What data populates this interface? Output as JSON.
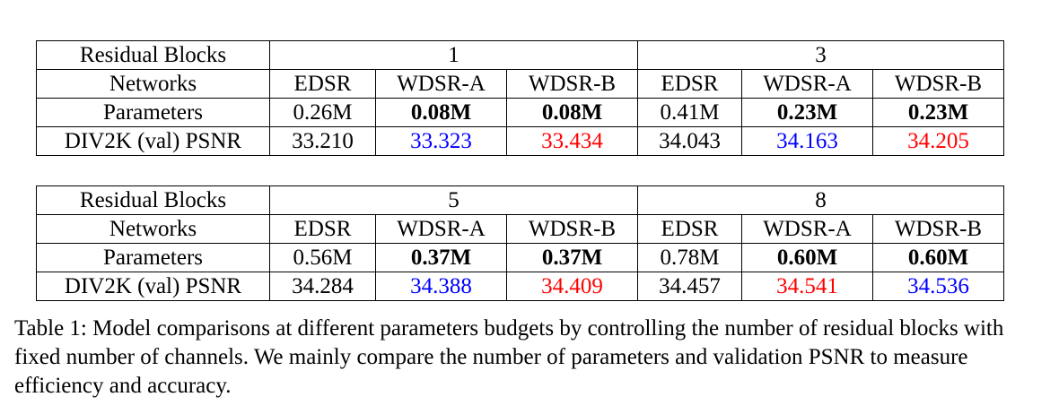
{
  "tables": [
    {
      "row_labels": [
        "Residual Blocks",
        "Networks",
        "Parameters",
        "DIV2K (val) PSNR"
      ],
      "groups": [
        {
          "blocks": "1",
          "networks": [
            "EDSR",
            "WDSR-A",
            "WDSR-B"
          ],
          "parameters": [
            "0.26M",
            "0.08M",
            "0.08M"
          ],
          "psnr": [
            "33.210",
            "33.323",
            "33.434"
          ]
        },
        {
          "blocks": "3",
          "networks": [
            "EDSR",
            "WDSR-A",
            "WDSR-B"
          ],
          "parameters": [
            "0.41M",
            "0.23M",
            "0.23M"
          ],
          "psnr": [
            "34.043",
            "34.163",
            "34.205"
          ]
        }
      ]
    },
    {
      "row_labels": [
        "Residual Blocks",
        "Networks",
        "Parameters",
        "DIV2K (val) PSNR"
      ],
      "groups": [
        {
          "blocks": "5",
          "networks": [
            "EDSR",
            "WDSR-A",
            "WDSR-B"
          ],
          "parameters": [
            "0.56M",
            "0.37M",
            "0.37M"
          ],
          "psnr": [
            "34.284",
            "34.388",
            "34.409"
          ]
        },
        {
          "blocks": "8",
          "networks": [
            "EDSR",
            "WDSR-A",
            "WDSR-B"
          ],
          "parameters": [
            "0.78M",
            "0.60M",
            "0.60M"
          ],
          "psnr": [
            "34.457",
            "34.541",
            "34.536"
          ]
        }
      ]
    }
  ],
  "highlight_colors": {
    "best": "#ff0000",
    "second": "#0000ff"
  },
  "caption": "Table 1: Model comparisons at different parameters budgets by controlling the number of residual blocks with fixed number of channels. We mainly compare the number of parameters and validation PSNR to measure efficiency and accuracy."
}
